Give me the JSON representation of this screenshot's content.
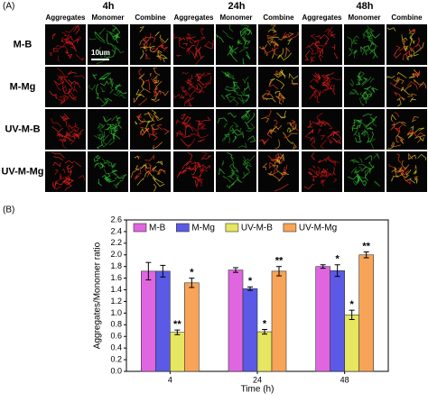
{
  "panel_a": {
    "label": "(A)",
    "times": [
      "4h",
      "24h",
      "48h"
    ],
    "columns": [
      "Aggregates",
      "Monomer",
      "Combine"
    ],
    "rows": [
      "M-B",
      "M-Mg",
      "UV-M-B",
      "UV-M-Mg"
    ],
    "scale_bar": "10um"
  },
  "chart_data": {
    "type": "bar",
    "panel_label": "(B)",
    "y_label": "Aggregates/Monomer ratio",
    "x_label": "Time (h)",
    "categories": [
      "4",
      "24",
      "48"
    ],
    "series": [
      {
        "name": "M-B",
        "color": "#e066e0",
        "values": [
          1.72,
          1.74,
          1.8
        ],
        "errors": [
          0.15,
          0.04,
          0.03
        ],
        "significance": [
          null,
          null,
          null
        ]
      },
      {
        "name": "M-Mg",
        "color": "#5a5ae6",
        "values": [
          1.72,
          1.42,
          1.73
        ],
        "errors": [
          0.1,
          0.03,
          0.1
        ],
        "significance": [
          null,
          "*",
          "*"
        ]
      },
      {
        "name": "UV-M-B",
        "color": "#e6e660",
        "values": [
          0.67,
          0.68,
          0.97
        ],
        "errors": [
          0.04,
          0.04,
          0.08
        ],
        "significance": [
          "**",
          "*",
          "*"
        ]
      },
      {
        "name": "UV-M-Mg",
        "color": "#f8a458",
        "values": [
          1.52,
          1.72,
          2.0
        ],
        "errors": [
          0.08,
          0.08,
          0.05
        ],
        "significance": [
          "*",
          "**",
          "**"
        ]
      }
    ],
    "ylim": [
      0,
      2.6
    ],
    "yticks": [
      {
        "value": 0,
        "label": "0.0"
      },
      0.2,
      0.4,
      0.6,
      0.8,
      {
        "value": 1,
        "label": "1.0"
      },
      1.2,
      1.4,
      1.6,
      1.8,
      {
        "value": 2,
        "label": "2.0"
      },
      2.2,
      2.4,
      2.6
    ],
    "legend": "top"
  }
}
